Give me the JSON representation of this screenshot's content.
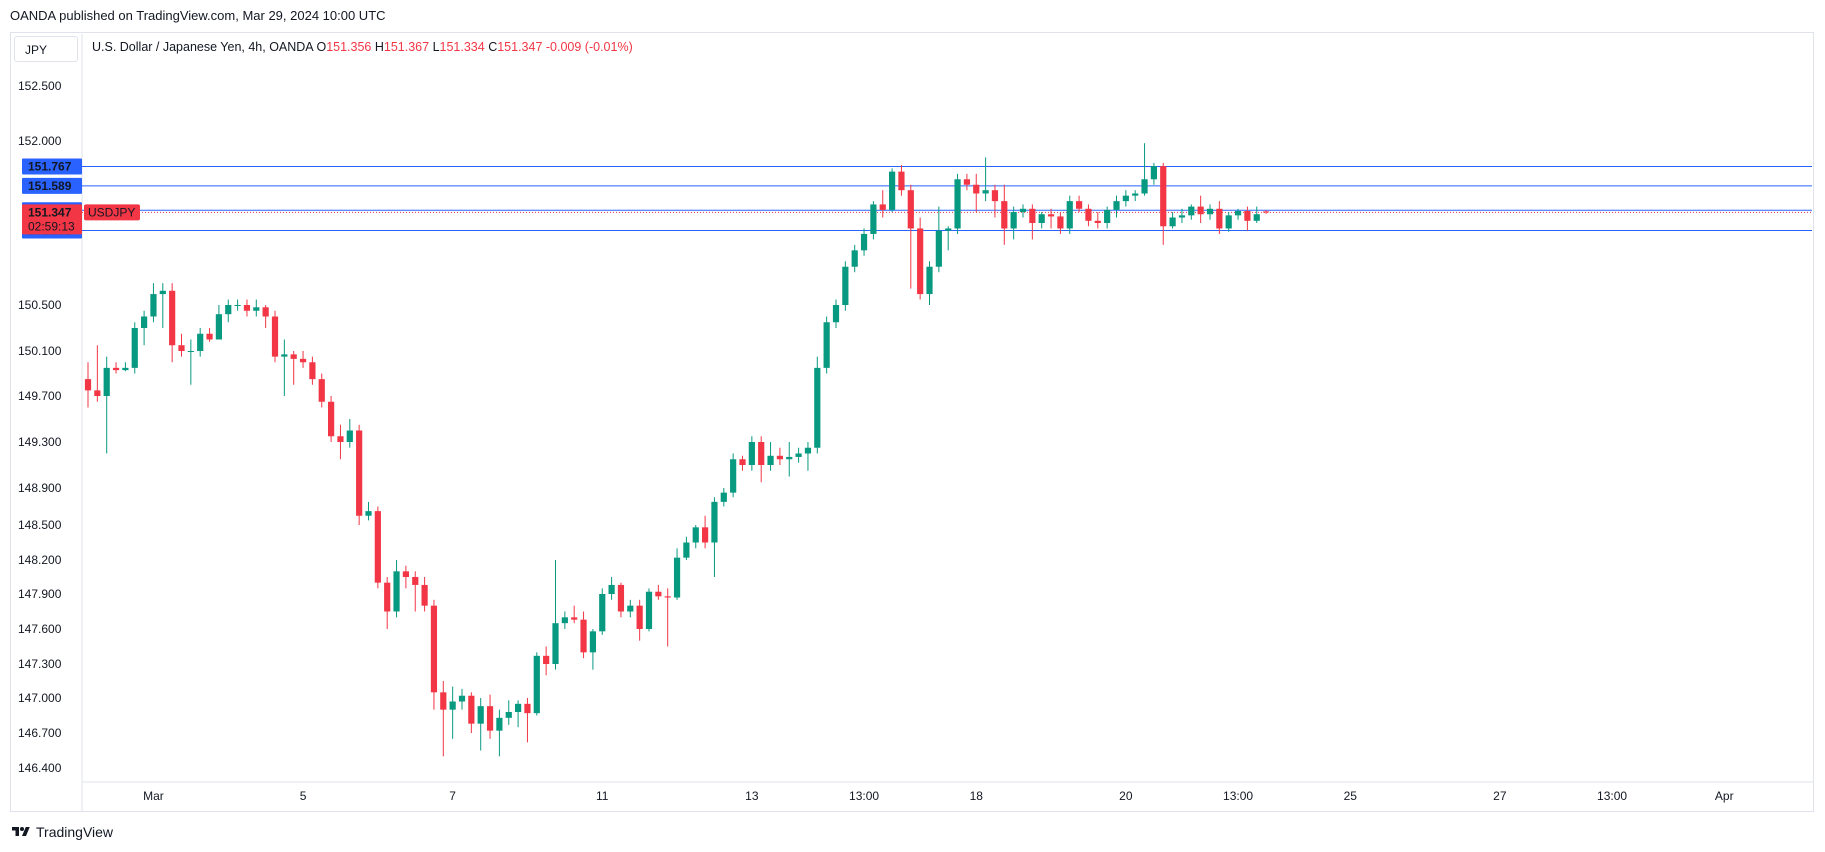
{
  "publisher_line": "OANDA published on TradingView.com, Mar 29, 2024 10:00 UTC",
  "currency": "JPY",
  "legend": {
    "symbol": "U.S. Dollar / Japanese Yen, 4h, OANDA",
    "o_label": "O",
    "o": "151.356",
    "h_label": "H",
    "h": "151.367",
    "l_label": "L",
    "l": "151.334",
    "c_label": "C",
    "c": "151.347",
    "change": "-0.009 (-0.01%)"
  },
  "footer": {
    "brand": "TradingView"
  },
  "colors": {
    "up": "#089981",
    "down": "#f23645",
    "level": "#2962ff",
    "grid": "#f0f3fa"
  },
  "chart_data": {
    "type": "candlestick",
    "symbol": "USDJPY",
    "timeframe": "4h",
    "y_ticks": [
      "146.400",
      "146.700",
      "147.000",
      "147.300",
      "147.600",
      "147.900",
      "148.200",
      "148.500",
      "148.900",
      "149.300",
      "149.700",
      "150.100",
      "150.500",
      "152.000",
      "152.500"
    ],
    "ylim": [
      146.2,
      152.9
    ],
    "x_ticks": [
      {
        "label": "Mar",
        "index": 7
      },
      {
        "label": "5",
        "index": 23
      },
      {
        "label": "7",
        "index": 39
      },
      {
        "label": "11",
        "index": 55
      },
      {
        "label": "13",
        "index": 71
      },
      {
        "label": "13:00",
        "index": 83
      },
      {
        "label": "18",
        "index": 95
      },
      {
        "label": "20",
        "index": 111
      },
      {
        "label": "13:00",
        "index": 123
      },
      {
        "label": "25",
        "index": 135
      },
      {
        "label": "27",
        "index": 151
      },
      {
        "label": "13:00",
        "index": 163
      },
      {
        "label": "Apr",
        "index": 175
      }
    ],
    "levels": [
      {
        "label": "151.767",
        "value": 151.767
      },
      {
        "label": "151.589",
        "value": 151.589
      },
      {
        "label": "151.367",
        "value": 151.367
      },
      {
        "label": "151.181",
        "value": 151.181
      }
    ],
    "current": {
      "price": "151.347",
      "countdown": "02:59:13",
      "symbol_tag": "USDJPY",
      "value": 151.347
    },
    "candles": [
      {
        "o": 149.85,
        "h": 150.0,
        "l": 149.6,
        "c": 149.75
      },
      {
        "o": 149.75,
        "h": 150.15,
        "l": 149.65,
        "c": 149.7
      },
      {
        "o": 149.7,
        "h": 150.05,
        "l": 149.2,
        "c": 149.95
      },
      {
        "o": 149.95,
        "h": 150.0,
        "l": 149.9,
        "c": 149.93
      },
      {
        "o": 149.93,
        "h": 150.0,
        "l": 149.92,
        "c": 149.95
      },
      {
        "o": 149.95,
        "h": 150.35,
        "l": 149.9,
        "c": 150.3
      },
      {
        "o": 150.3,
        "h": 150.45,
        "l": 150.15,
        "c": 150.4
      },
      {
        "o": 150.4,
        "h": 150.7,
        "l": 150.35,
        "c": 150.6
      },
      {
        "o": 150.6,
        "h": 150.7,
        "l": 150.3,
        "c": 150.63
      },
      {
        "o": 150.63,
        "h": 150.7,
        "l": 150.0,
        "c": 150.15
      },
      {
        "o": 150.15,
        "h": 150.25,
        "l": 150.05,
        "c": 150.1
      },
      {
        "o": 150.1,
        "h": 150.2,
        "l": 149.8,
        "c": 150.1
      },
      {
        "o": 150.1,
        "h": 150.3,
        "l": 150.05,
        "c": 150.25
      },
      {
        "o": 150.25,
        "h": 150.3,
        "l": 150.18,
        "c": 150.2
      },
      {
        "o": 150.2,
        "h": 150.5,
        "l": 150.2,
        "c": 150.42
      },
      {
        "o": 150.42,
        "h": 150.55,
        "l": 150.35,
        "c": 150.5
      },
      {
        "o": 150.5,
        "h": 150.55,
        "l": 150.45,
        "c": 150.5
      },
      {
        "o": 150.5,
        "h": 150.55,
        "l": 150.4,
        "c": 150.45
      },
      {
        "o": 150.45,
        "h": 150.55,
        "l": 150.4,
        "c": 150.48
      },
      {
        "o": 150.48,
        "h": 150.5,
        "l": 150.3,
        "c": 150.4
      },
      {
        "o": 150.4,
        "h": 150.45,
        "l": 150.0,
        "c": 150.05
      },
      {
        "o": 150.05,
        "h": 150.2,
        "l": 149.7,
        "c": 150.07
      },
      {
        "o": 150.07,
        "h": 150.1,
        "l": 149.8,
        "c": 150.03
      },
      {
        "o": 150.03,
        "h": 150.1,
        "l": 149.95,
        "c": 150.0
      },
      {
        "o": 150.0,
        "h": 150.05,
        "l": 149.8,
        "c": 149.85
      },
      {
        "o": 149.85,
        "h": 149.9,
        "l": 149.6,
        "c": 149.65
      },
      {
        "o": 149.65,
        "h": 149.7,
        "l": 149.3,
        "c": 149.35
      },
      {
        "o": 149.35,
        "h": 149.45,
        "l": 149.15,
        "c": 149.3
      },
      {
        "o": 149.3,
        "h": 149.5,
        "l": 149.25,
        "c": 149.4
      },
      {
        "o": 149.4,
        "h": 149.45,
        "l": 148.5,
        "c": 148.6
      },
      {
        "o": 148.6,
        "h": 148.75,
        "l": 148.55,
        "c": 148.65
      },
      {
        "o": 148.65,
        "h": 148.7,
        "l": 147.95,
        "c": 148.0
      },
      {
        "o": 148.0,
        "h": 148.05,
        "l": 147.6,
        "c": 147.75
      },
      {
        "o": 147.75,
        "h": 148.2,
        "l": 147.7,
        "c": 148.1
      },
      {
        "o": 148.1,
        "h": 148.15,
        "l": 147.95,
        "c": 148.05
      },
      {
        "o": 148.05,
        "h": 148.1,
        "l": 147.75,
        "c": 147.98
      },
      {
        "o": 147.98,
        "h": 148.05,
        "l": 147.75,
        "c": 147.8
      },
      {
        "o": 147.8,
        "h": 147.85,
        "l": 146.9,
        "c": 147.05
      },
      {
        "o": 147.05,
        "h": 147.15,
        "l": 146.5,
        "c": 146.9
      },
      {
        "o": 146.9,
        "h": 147.1,
        "l": 146.65,
        "c": 146.97
      },
      {
        "o": 146.97,
        "h": 147.08,
        "l": 146.9,
        "c": 147.02
      },
      {
        "o": 147.02,
        "h": 147.05,
        "l": 146.7,
        "c": 146.78
      },
      {
        "o": 146.78,
        "h": 147.0,
        "l": 146.55,
        "c": 146.93
      },
      {
        "o": 146.93,
        "h": 147.03,
        "l": 146.65,
        "c": 146.72
      },
      {
        "o": 146.72,
        "h": 146.9,
        "l": 146.5,
        "c": 146.83
      },
      {
        "o": 146.83,
        "h": 146.98,
        "l": 146.77,
        "c": 146.88
      },
      {
        "o": 146.88,
        "h": 146.98,
        "l": 146.75,
        "c": 146.95
      },
      {
        "o": 146.95,
        "h": 147.0,
        "l": 146.62,
        "c": 146.87
      },
      {
        "o": 146.87,
        "h": 147.4,
        "l": 146.85,
        "c": 147.37
      },
      {
        "o": 147.37,
        "h": 147.45,
        "l": 147.2,
        "c": 147.3
      },
      {
        "o": 147.3,
        "h": 148.2,
        "l": 147.25,
        "c": 147.65
      },
      {
        "o": 147.65,
        "h": 147.75,
        "l": 147.6,
        "c": 147.7
      },
      {
        "o": 147.7,
        "h": 147.8,
        "l": 147.65,
        "c": 147.68
      },
      {
        "o": 147.68,
        "h": 147.75,
        "l": 147.35,
        "c": 147.4
      },
      {
        "o": 147.4,
        "h": 147.6,
        "l": 147.25,
        "c": 147.58
      },
      {
        "o": 147.58,
        "h": 147.95,
        "l": 147.55,
        "c": 147.9
      },
      {
        "o": 147.9,
        "h": 148.05,
        "l": 147.85,
        "c": 147.98
      },
      {
        "o": 147.98,
        "h": 148.0,
        "l": 147.7,
        "c": 147.75
      },
      {
        "o": 147.75,
        "h": 147.85,
        "l": 147.7,
        "c": 147.8
      },
      {
        "o": 147.8,
        "h": 147.85,
        "l": 147.5,
        "c": 147.6
      },
      {
        "o": 147.6,
        "h": 147.95,
        "l": 147.58,
        "c": 147.92
      },
      {
        "o": 147.92,
        "h": 147.98,
        "l": 147.85,
        "c": 147.88
      },
      {
        "o": 147.88,
        "h": 147.95,
        "l": 147.45,
        "c": 147.87
      },
      {
        "o": 147.87,
        "h": 148.3,
        "l": 147.85,
        "c": 148.22
      },
      {
        "o": 148.22,
        "h": 148.4,
        "l": 148.2,
        "c": 148.35
      },
      {
        "o": 148.35,
        "h": 148.5,
        "l": 148.3,
        "c": 148.48
      },
      {
        "o": 148.48,
        "h": 148.6,
        "l": 148.3,
        "c": 148.35
      },
      {
        "o": 148.35,
        "h": 148.8,
        "l": 148.05,
        "c": 148.75
      },
      {
        "o": 148.75,
        "h": 148.9,
        "l": 148.7,
        "c": 148.85
      },
      {
        "o": 148.85,
        "h": 149.2,
        "l": 148.8,
        "c": 149.15
      },
      {
        "o": 149.15,
        "h": 149.18,
        "l": 149.05,
        "c": 149.1
      },
      {
        "o": 149.1,
        "h": 149.35,
        "l": 149.05,
        "c": 149.3
      },
      {
        "o": 149.3,
        "h": 149.35,
        "l": 148.95,
        "c": 149.1
      },
      {
        "o": 149.1,
        "h": 149.3,
        "l": 149.05,
        "c": 149.18
      },
      {
        "o": 149.18,
        "h": 149.25,
        "l": 149.1,
        "c": 149.15
      },
      {
        "o": 149.15,
        "h": 149.3,
        "l": 149.0,
        "c": 149.17
      },
      {
        "o": 149.17,
        "h": 149.25,
        "l": 149.12,
        "c": 149.2
      },
      {
        "o": 149.2,
        "h": 149.3,
        "l": 149.05,
        "c": 149.25
      },
      {
        "o": 149.25,
        "h": 150.05,
        "l": 149.2,
        "c": 149.95
      },
      {
        "o": 149.95,
        "h": 150.4,
        "l": 149.9,
        "c": 150.35
      },
      {
        "o": 150.35,
        "h": 150.55,
        "l": 150.3,
        "c": 150.5
      },
      {
        "o": 150.5,
        "h": 150.9,
        "l": 150.45,
        "c": 150.85
      },
      {
        "o": 150.85,
        "h": 151.05,
        "l": 150.8,
        "c": 151.0
      },
      {
        "o": 151.0,
        "h": 151.2,
        "l": 150.95,
        "c": 151.15
      },
      {
        "o": 151.15,
        "h": 151.45,
        "l": 151.1,
        "c": 151.42
      },
      {
        "o": 151.42,
        "h": 151.55,
        "l": 151.3,
        "c": 151.37
      },
      {
        "o": 151.37,
        "h": 151.75,
        "l": 151.35,
        "c": 151.72
      },
      {
        "o": 151.72,
        "h": 151.78,
        "l": 151.5,
        "c": 151.55
      },
      {
        "o": 151.55,
        "h": 151.6,
        "l": 150.65,
        "c": 151.2
      },
      {
        "o": 151.2,
        "h": 151.3,
        "l": 150.55,
        "c": 150.6
      },
      {
        "o": 150.6,
        "h": 150.9,
        "l": 150.5,
        "c": 150.85
      },
      {
        "o": 150.85,
        "h": 151.4,
        "l": 150.8,
        "c": 151.18
      },
      {
        "o": 151.18,
        "h": 151.22,
        "l": 151.0,
        "c": 151.2
      },
      {
        "o": 151.2,
        "h": 151.7,
        "l": 151.15,
        "c": 151.65
      },
      {
        "o": 151.65,
        "h": 151.7,
        "l": 151.55,
        "c": 151.6
      },
      {
        "o": 151.6,
        "h": 151.7,
        "l": 151.35,
        "c": 151.52
      },
      {
        "o": 151.52,
        "h": 151.85,
        "l": 151.45,
        "c": 151.55
      },
      {
        "o": 151.55,
        "h": 151.6,
        "l": 151.3,
        "c": 151.45
      },
      {
        "o": 151.45,
        "h": 151.6,
        "l": 151.05,
        "c": 151.2
      },
      {
        "o": 151.2,
        "h": 151.4,
        "l": 151.1,
        "c": 151.35
      },
      {
        "o": 151.35,
        "h": 151.42,
        "l": 151.3,
        "c": 151.38
      },
      {
        "o": 151.38,
        "h": 151.42,
        "l": 151.1,
        "c": 151.25
      },
      {
        "o": 151.25,
        "h": 151.35,
        "l": 151.2,
        "c": 151.33
      },
      {
        "o": 151.33,
        "h": 151.38,
        "l": 151.2,
        "c": 151.31
      },
      {
        "o": 151.31,
        "h": 151.35,
        "l": 151.15,
        "c": 151.2
      },
      {
        "o": 151.2,
        "h": 151.5,
        "l": 151.15,
        "c": 151.45
      },
      {
        "o": 151.45,
        "h": 151.5,
        "l": 151.35,
        "c": 151.38
      },
      {
        "o": 151.38,
        "h": 151.42,
        "l": 151.22,
        "c": 151.27
      },
      {
        "o": 151.27,
        "h": 151.35,
        "l": 151.2,
        "c": 151.25
      },
      {
        "o": 151.25,
        "h": 151.4,
        "l": 151.2,
        "c": 151.37
      },
      {
        "o": 151.37,
        "h": 151.5,
        "l": 151.3,
        "c": 151.45
      },
      {
        "o": 151.45,
        "h": 151.55,
        "l": 151.4,
        "c": 151.5
      },
      {
        "o": 151.5,
        "h": 151.55,
        "l": 151.45,
        "c": 151.52
      },
      {
        "o": 151.52,
        "h": 151.98,
        "l": 151.5,
        "c": 151.65
      },
      {
        "o": 151.65,
        "h": 151.8,
        "l": 151.6,
        "c": 151.77
      },
      {
        "o": 151.77,
        "h": 151.8,
        "l": 151.05,
        "c": 151.22
      },
      {
        "o": 151.22,
        "h": 151.35,
        "l": 151.2,
        "c": 151.3
      },
      {
        "o": 151.3,
        "h": 151.38,
        "l": 151.25,
        "c": 151.32
      },
      {
        "o": 151.32,
        "h": 151.42,
        "l": 151.28,
        "c": 151.4
      },
      {
        "o": 151.4,
        "h": 151.5,
        "l": 151.25,
        "c": 151.33
      },
      {
        "o": 151.33,
        "h": 151.42,
        "l": 151.28,
        "c": 151.38
      },
      {
        "o": 151.38,
        "h": 151.45,
        "l": 151.15,
        "c": 151.2
      },
      {
        "o": 151.2,
        "h": 151.35,
        "l": 151.17,
        "c": 151.32
      },
      {
        "o": 151.32,
        "h": 151.38,
        "l": 151.28,
        "c": 151.36
      },
      {
        "o": 151.36,
        "h": 151.4,
        "l": 151.18,
        "c": 151.27
      },
      {
        "o": 151.27,
        "h": 151.4,
        "l": 151.25,
        "c": 151.33
      },
      {
        "o": 151.356,
        "h": 151.367,
        "l": 151.334,
        "c": 151.347
      }
    ]
  }
}
